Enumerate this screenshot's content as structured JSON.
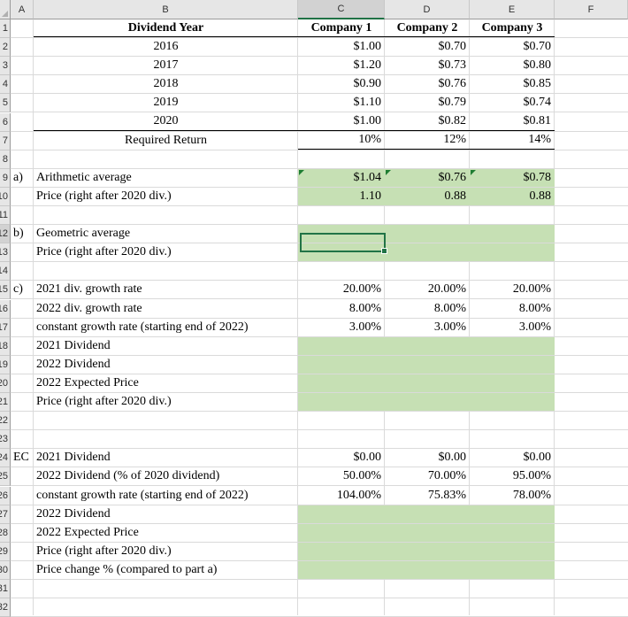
{
  "columns": [
    "A",
    "B",
    "C",
    "D",
    "E",
    "F"
  ],
  "row_numbers": [
    "1",
    "2",
    "3",
    "4",
    "5",
    "6",
    "7",
    "8",
    "9",
    "10",
    "11",
    "12",
    "13",
    "14",
    "15",
    "16",
    "17",
    "18",
    "19",
    "20",
    "21",
    "22",
    "23",
    "24",
    "25",
    "26",
    "27",
    "28",
    "29",
    "30",
    "31",
    "32"
  ],
  "header_row": {
    "b": "Dividend Year",
    "c": "Company 1",
    "d": "Company 2",
    "e": "Company 3"
  },
  "dividends": [
    {
      "year": "2016",
      "c": "$1.00",
      "d": "$0.70",
      "e": "$0.70"
    },
    {
      "year": "2017",
      "c": "$1.20",
      "d": "$0.73",
      "e": "$0.80"
    },
    {
      "year": "2018",
      "c": "$0.90",
      "d": "$0.76",
      "e": "$0.85"
    },
    {
      "year": "2019",
      "c": "$1.10",
      "d": "$0.79",
      "e": "$0.74"
    },
    {
      "year": "2020",
      "c": "$1.00",
      "d": "$0.82",
      "e": "$0.81"
    }
  ],
  "required_return": {
    "label": "Required Return",
    "c": "10%",
    "d": "12%",
    "e": "14%"
  },
  "part_a": {
    "tag": "a)",
    "rows": [
      {
        "label": "Arithmetic average",
        "c": "$1.04",
        "d": "$0.76",
        "e": "$0.78"
      },
      {
        "label": "Price (right after 2020 div.)",
        "c": "1.10",
        "d": "0.88",
        "e": "0.88"
      }
    ]
  },
  "part_b": {
    "tag": "b)",
    "rows": [
      {
        "label": "Geometric average",
        "c": "",
        "d": "",
        "e": ""
      },
      {
        "label": "Price (right after 2020 div.)",
        "c": "",
        "d": "",
        "e": ""
      }
    ]
  },
  "part_c": {
    "tag": "c)",
    "rows": [
      {
        "label": "2021 div. growth rate",
        "c": "20.00%",
        "d": "20.00%",
        "e": "20.00%"
      },
      {
        "label": "2022 div. growth rate",
        "c": "8.00%",
        "d": "8.00%",
        "e": "8.00%"
      },
      {
        "label": "constant growth rate (starting end of 2022)",
        "c": "3.00%",
        "d": "3.00%",
        "e": "3.00%"
      },
      {
        "label": "2021 Dividend",
        "c": "",
        "d": "",
        "e": ""
      },
      {
        "label": "2022 Dividend",
        "c": "",
        "d": "",
        "e": ""
      },
      {
        "label": "2022 Expected Price",
        "c": "",
        "d": "",
        "e": ""
      },
      {
        "label": "Price (right after 2020 div.)",
        "c": "",
        "d": "",
        "e": ""
      }
    ]
  },
  "part_ec": {
    "tag": "EC",
    "rows": [
      {
        "label": "2021 Dividend",
        "c": "$0.00",
        "d": "$0.00",
        "e": "$0.00"
      },
      {
        "label": "2022 Dividend (% of 2020 dividend)",
        "c": "50.00%",
        "d": "70.00%",
        "e": "95.00%"
      },
      {
        "label": "constant growth rate (starting end of 2022)",
        "c": "104.00%",
        "d": "75.83%",
        "e": "78.00%"
      },
      {
        "label": "2022 Dividend",
        "c": "",
        "d": "",
        "e": ""
      },
      {
        "label": "2022 Expected Price",
        "c": "",
        "d": "",
        "e": ""
      },
      {
        "label": "Price (right after 2020 div.)",
        "c": "",
        "d": "",
        "e": ""
      },
      {
        "label": "Price change % (compared to part a)",
        "c": "",
        "d": "",
        "e": ""
      }
    ]
  },
  "colors": {
    "input_fill": "#c6e0b4",
    "selection": "#217346",
    "header_bg": "#e6e6e6"
  },
  "selected_cell": "C12"
}
